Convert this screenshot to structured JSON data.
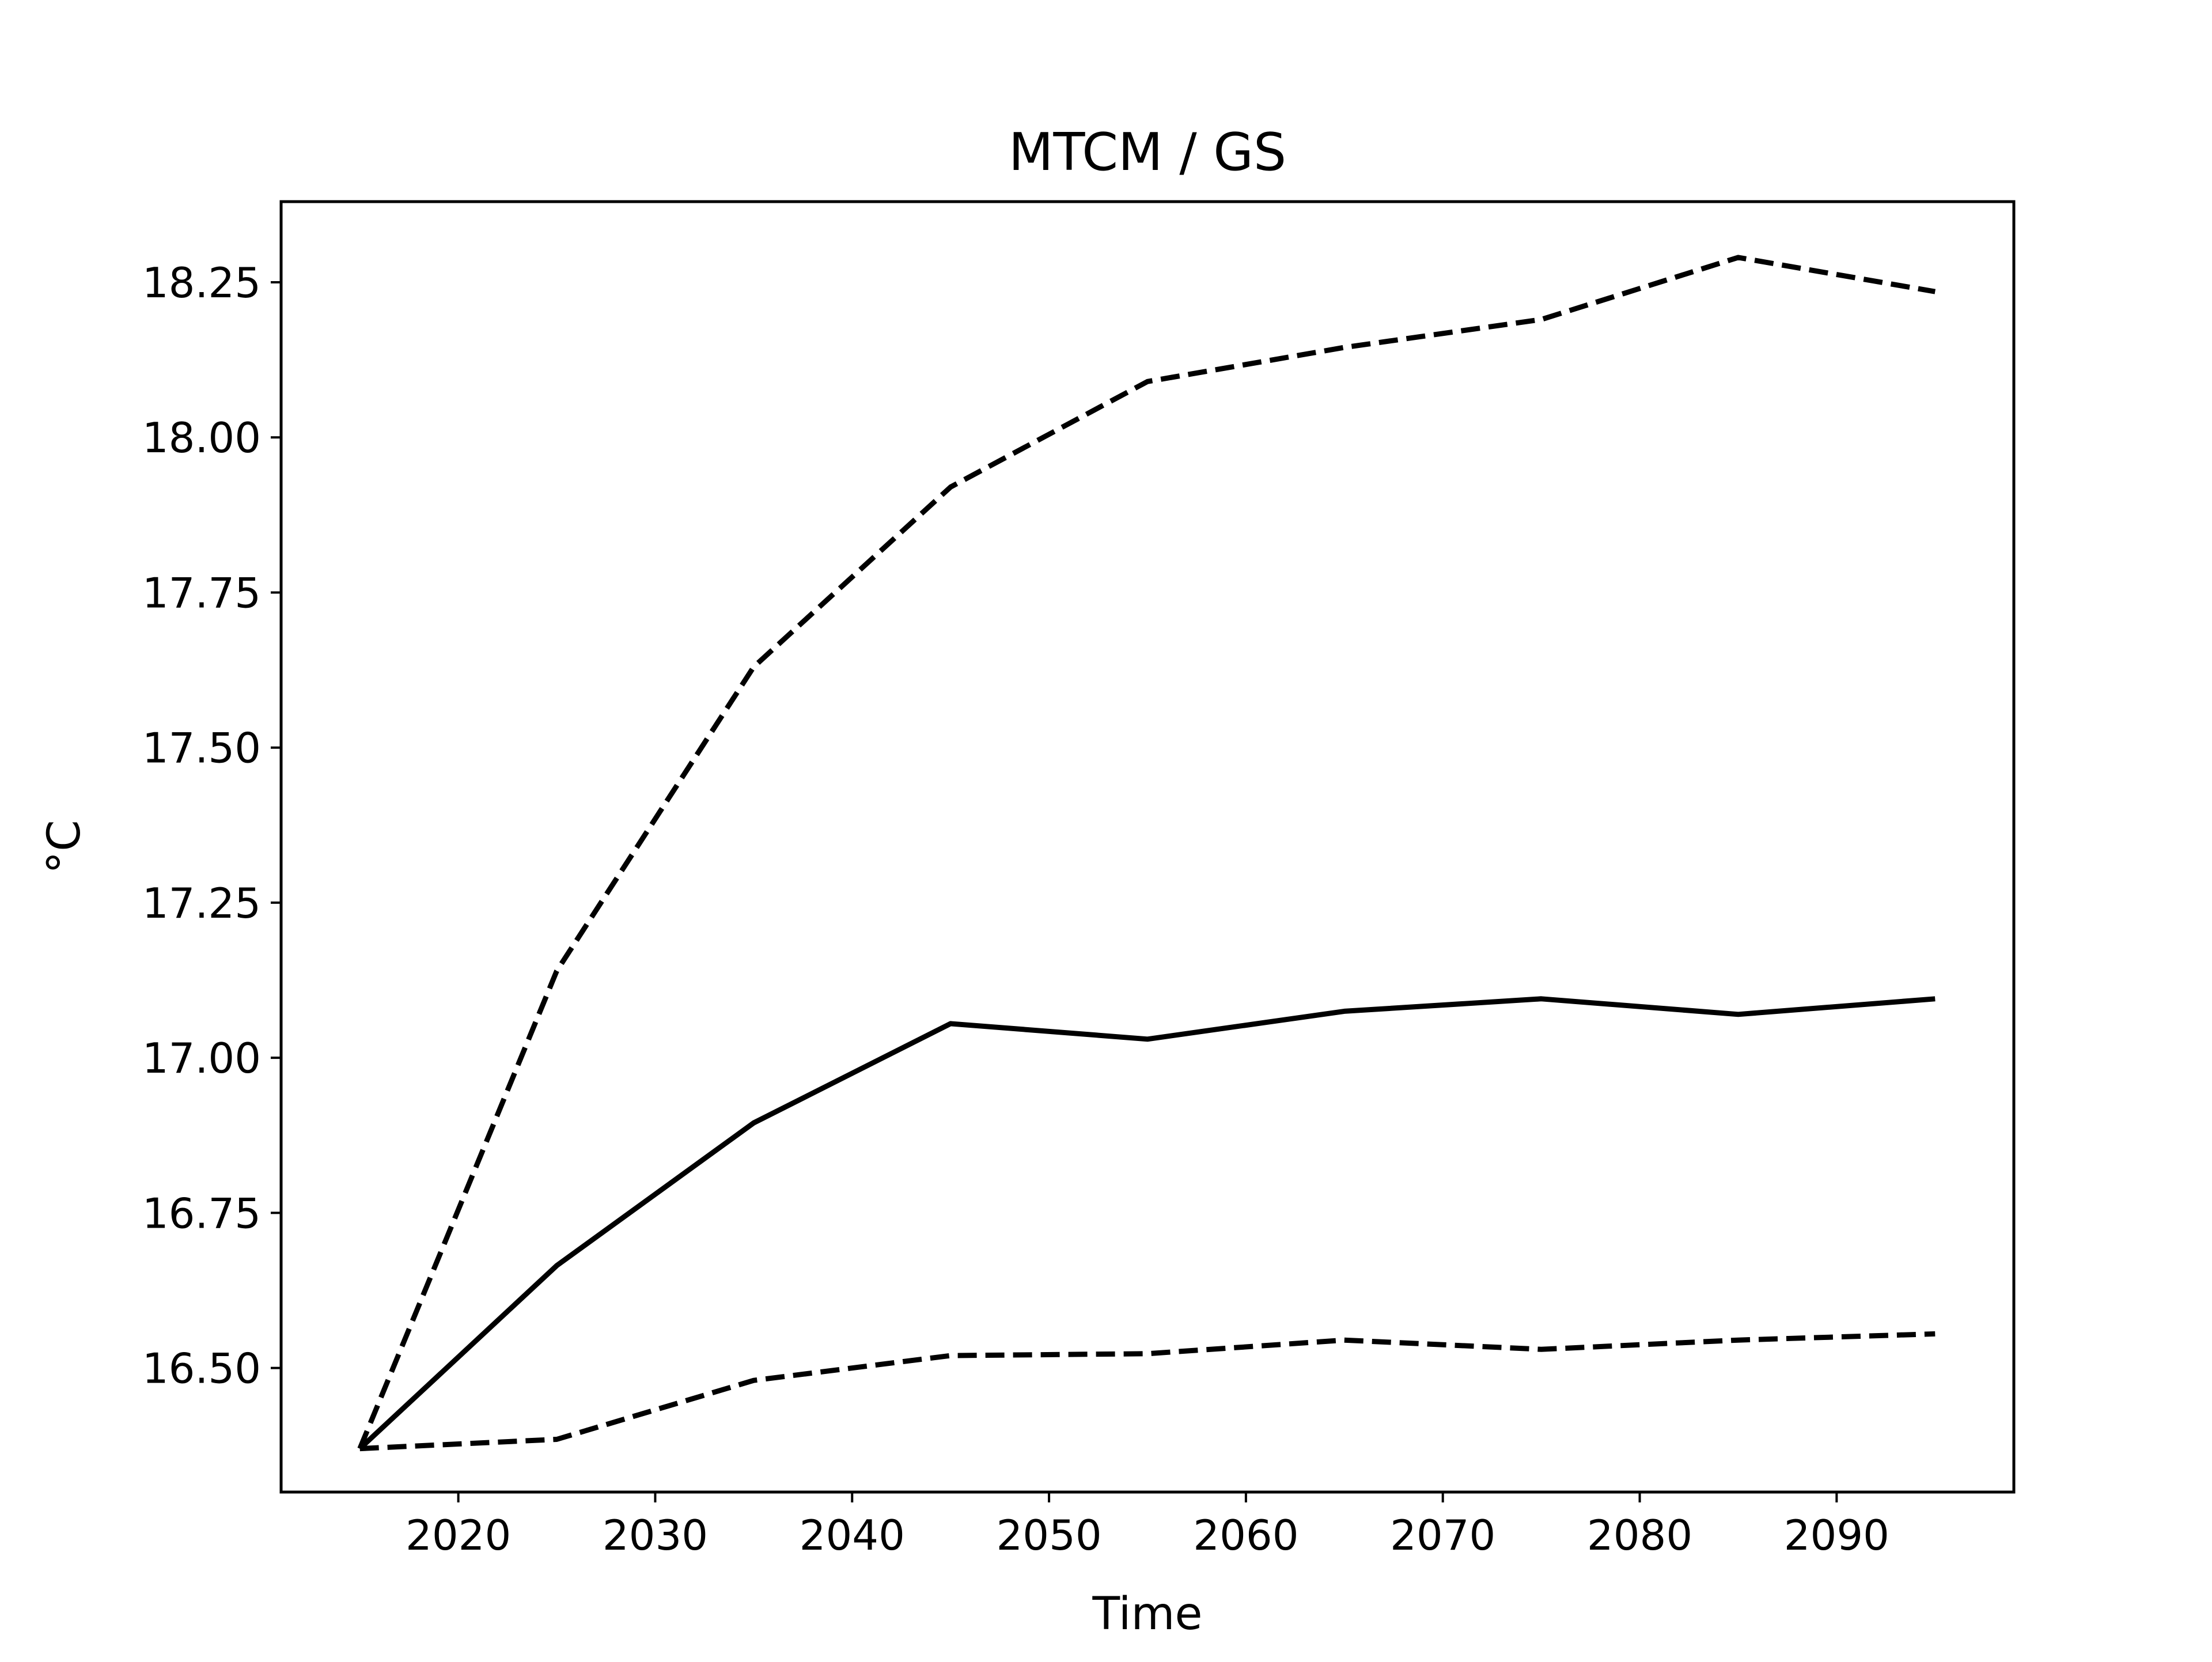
{
  "chart_data": {
    "type": "line",
    "title": "MTCM / GS",
    "xlabel": "Time",
    "ylabel": "°C",
    "xlim": [
      2011,
      2099
    ],
    "ylim": [
      16.3,
      18.38
    ],
    "xticks": [
      2020,
      2030,
      2040,
      2050,
      2060,
      2070,
      2080,
      2090
    ],
    "yticks": [
      16.5,
      16.75,
      17.0,
      17.25,
      17.5,
      17.75,
      18.0,
      18.25
    ],
    "ytick_labels": [
      "16.50",
      "16.75",
      "17.00",
      "17.25",
      "17.50",
      "17.75",
      "18.00",
      "18.25"
    ],
    "grid": false,
    "x": [
      2015,
      2025,
      2035,
      2045,
      2055,
      2065,
      2075,
      2085,
      2095
    ],
    "series": [
      {
        "style": "dashed",
        "color": "#000000",
        "values": [
          16.37,
          17.14,
          17.63,
          17.92,
          18.09,
          18.145,
          18.19,
          18.29,
          18.235
        ]
      },
      {
        "style": "solid",
        "color": "#000000",
        "values": [
          16.37,
          16.665,
          16.895,
          17.055,
          17.03,
          17.075,
          17.095,
          17.07,
          17.095
        ]
      },
      {
        "style": "dashed",
        "color": "#000000",
        "values": [
          16.37,
          16.385,
          16.48,
          16.52,
          16.523,
          16.545,
          16.53,
          16.545,
          16.555
        ]
      }
    ]
  }
}
